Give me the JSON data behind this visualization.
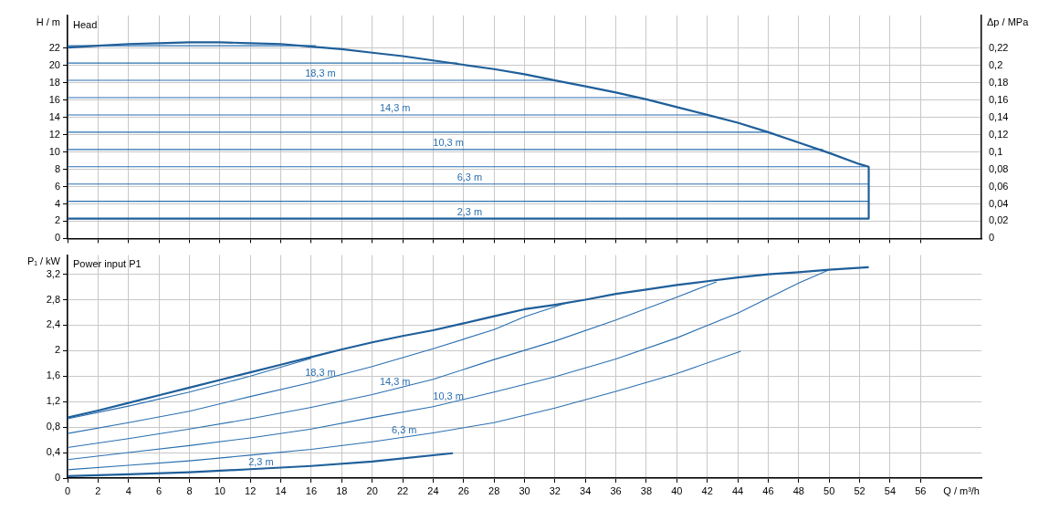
{
  "chart_data": [
    {
      "type": "line",
      "title": "Head",
      "ylabel": "H / m",
      "y2label": "Δp / MPa",
      "xlim": [
        0,
        60
      ],
      "xticks": [
        0,
        2,
        4,
        6,
        8,
        10,
        12,
        14,
        16,
        18,
        20,
        22,
        24,
        26,
        28,
        30,
        32,
        34,
        36,
        38,
        40,
        42,
        44,
        46,
        48,
        50,
        52,
        54,
        56
      ],
      "ylim": [
        0,
        25.8
      ],
      "yticks": [
        0,
        2,
        4,
        6,
        8,
        10,
        12,
        14,
        16,
        18,
        20,
        22
      ],
      "y2lim": [
        0,
        0.258
      ],
      "y2ticks": [
        0,
        {
          "value": 0.02,
          "label": "0,02"
        },
        {
          "value": 0.04,
          "label": "0,04"
        },
        {
          "value": 0.06,
          "label": "0,06"
        },
        {
          "value": 0.08,
          "label": "0,08"
        },
        {
          "value": 0.1,
          "label": "0,1"
        },
        {
          "value": 0.12,
          "label": "0,12"
        },
        {
          "value": 0.14,
          "label": "0,14"
        },
        {
          "value": 0.16,
          "label": "0,16"
        },
        {
          "value": 0.18,
          "label": "0,18"
        },
        {
          "value": 0.2,
          "label": "0,2"
        },
        {
          "value": 0.22,
          "label": "0,22"
        }
      ],
      "tick_labels": "y",
      "grid": true,
      "legend": false,
      "marker": "none",
      "line_style": "solid",
      "series": [
        {
          "color": "#1f5f9a",
          "x": [
            0,
            2,
            4,
            6,
            8,
            10,
            12,
            14,
            16,
            18,
            20,
            22,
            24,
            26,
            28,
            30,
            32,
            34,
            36,
            38,
            40,
            42,
            44,
            46,
            48,
            50,
            52,
            52.6,
            52.6
          ],
          "values": [
            22.1,
            22.3,
            22.5,
            22.6,
            22.7,
            22.7,
            22.6,
            22.5,
            22.2,
            21.9,
            21.5,
            21.1,
            20.6,
            20.1,
            19.6,
            19.0,
            18.3,
            17.6,
            16.9,
            16.1,
            15.2,
            14.3,
            13.4,
            12.3,
            11.1,
            9.9,
            8.6,
            8.3,
            2.3
          ]
        },
        {
          "color": "#2a6fb0",
          "x": [
            0,
            16.3
          ],
          "values": [
            22.3,
            22.3
          ]
        },
        {
          "color": "#2a6fb0",
          "x": [
            0,
            25.6
          ],
          "values": [
            20.3,
            20.3
          ]
        },
        {
          "color": "#2a6fb0",
          "x": [
            0,
            32.0
          ],
          "values": [
            18.3,
            18.3
          ]
        },
        {
          "color": "#2a6fb0",
          "x": [
            0,
            37.5
          ],
          "values": [
            16.3,
            16.3
          ]
        },
        {
          "color": "#2a6fb0",
          "x": [
            0,
            42.0
          ],
          "values": [
            14.3,
            14.3
          ]
        },
        {
          "color": "#2a6fb0",
          "x": [
            0,
            46.0
          ],
          "values": [
            12.3,
            12.3
          ]
        },
        {
          "color": "#2a6fb0",
          "x": [
            0,
            49.6
          ],
          "values": [
            10.3,
            10.3
          ]
        },
        {
          "color": "#2a6fb0",
          "x": [
            0,
            52.6
          ],
          "values": [
            8.3,
            8.3
          ]
        },
        {
          "color": "#2a6fb0",
          "x": [
            0,
            52.6
          ],
          "values": [
            6.3,
            6.3
          ]
        },
        {
          "color": "#2a6fb0",
          "x": [
            0,
            52.6
          ],
          "values": [
            4.3,
            4.3
          ]
        },
        {
          "color": "#1f5f9a",
          "x": [
            0,
            52.6
          ],
          "values": [
            2.3,
            2.3
          ]
        }
      ],
      "annotations": [
        {
          "text": "18,3 m",
          "x": 16.6,
          "y": 18.3
        },
        {
          "text": "14,3 m",
          "x": 21.5,
          "y": 14.3
        },
        {
          "text": "10,3 m",
          "x": 25,
          "y": 10.3
        },
        {
          "text": "6,3 m",
          "x": 26.4,
          "y": 6.3
        },
        {
          "text": "2,3 m",
          "x": 26.4,
          "y": 2.3
        }
      ]
    },
    {
      "type": "line",
      "title": "Power input P1",
      "ylabel": "P₁ / kW",
      "xlabel": "Q / m³/h",
      "xlim": [
        0,
        60
      ],
      "xticks": [
        0,
        2,
        4,
        6,
        8,
        10,
        12,
        14,
        16,
        18,
        20,
        22,
        24,
        26,
        28,
        30,
        32,
        34,
        36,
        38,
        40,
        42,
        44,
        46,
        48,
        50,
        52,
        54,
        56
      ],
      "ylim": [
        0,
        3.5
      ],
      "yticks": [
        0,
        {
          "value": 0.4,
          "label": "0,4"
        },
        {
          "value": 0.8,
          "label": "0,8"
        },
        {
          "value": 1.2,
          "label": "1,2"
        },
        {
          "value": 1.6,
          "label": "1,6"
        },
        2,
        {
          "value": 2.4,
          "label": "2,4"
        },
        {
          "value": 2.8,
          "label": "2,8"
        },
        {
          "value": 3.2,
          "label": "3,2"
        }
      ],
      "grid": true,
      "legend": false,
      "marker": "none",
      "line_style": "solid",
      "series": [
        {
          "color": "#1f5f9a",
          "x": [
            0,
            2,
            4,
            6,
            8,
            10,
            12,
            14,
            16,
            18,
            20,
            22,
            24,
            26,
            28,
            30,
            32,
            34,
            36,
            38,
            40,
            42,
            44,
            46,
            48,
            50,
            52.6
          ],
          "values": [
            0.95,
            1.06,
            1.18,
            1.3,
            1.42,
            1.54,
            1.66,
            1.78,
            1.9,
            2.02,
            2.13,
            2.23,
            2.32,
            2.43,
            2.54,
            2.65,
            2.72,
            2.8,
            2.89,
            2.96,
            3.03,
            3.09,
            3.15,
            3.2,
            3.23,
            3.27,
            3.31
          ]
        },
        {
          "color": "#2a6fb0",
          "x": [
            0,
            4,
            8,
            12,
            16
          ],
          "values": [
            0.93,
            1.13,
            1.35,
            1.6,
            1.88
          ]
        },
        {
          "color": "#2a6fb0",
          "x": [
            0,
            4,
            8,
            12,
            16,
            20,
            24,
            28,
            30,
            32.9
          ],
          "values": [
            0.7,
            0.87,
            1.05,
            1.28,
            1.5,
            1.75,
            2.03,
            2.33,
            2.53,
            2.76
          ]
        },
        {
          "color": "#2a6fb0",
          "x": [
            0,
            4,
            8,
            12,
            16,
            20,
            24,
            28,
            32,
            36,
            40,
            42.6
          ],
          "values": [
            0.48,
            0.62,
            0.77,
            0.93,
            1.11,
            1.31,
            1.55,
            1.86,
            2.15,
            2.48,
            2.84,
            3.08
          ]
        },
        {
          "color": "#2a6fb0",
          "x": [
            0,
            4,
            8,
            12,
            16,
            20,
            24,
            28,
            32,
            36,
            40,
            44,
            48,
            50
          ],
          "values": [
            0.29,
            0.4,
            0.51,
            0.63,
            0.77,
            0.95,
            1.12,
            1.35,
            1.59,
            1.87,
            2.2,
            2.59,
            3.06,
            3.27
          ]
        },
        {
          "color": "#2a6fb0",
          "x": [
            0,
            4,
            8,
            12,
            16,
            20,
            24,
            28,
            32,
            36,
            40,
            44.2
          ],
          "values": [
            0.13,
            0.2,
            0.27,
            0.36,
            0.45,
            0.57,
            0.71,
            0.87,
            1.1,
            1.36,
            1.64,
            1.99
          ]
        },
        {
          "color": "#1f5f9a",
          "x": [
            0,
            4,
            8,
            12,
            16,
            20,
            25.3
          ],
          "values": [
            0.03,
            0.06,
            0.09,
            0.14,
            0.19,
            0.26,
            0.39
          ]
        }
      ],
      "annotations": [
        {
          "text": "18,3 m",
          "x": 16.6,
          "y": 1.54
        },
        {
          "text": "14,3 m",
          "x": 21.5,
          "y": 1.4
        },
        {
          "text": "10,3 m",
          "x": 25,
          "y": 1.18
        },
        {
          "text": "6,3 m",
          "x": 22.1,
          "y": 0.64
        },
        {
          "text": "2,3 m",
          "x": 12.7,
          "y": 0.15
        }
      ]
    }
  ]
}
